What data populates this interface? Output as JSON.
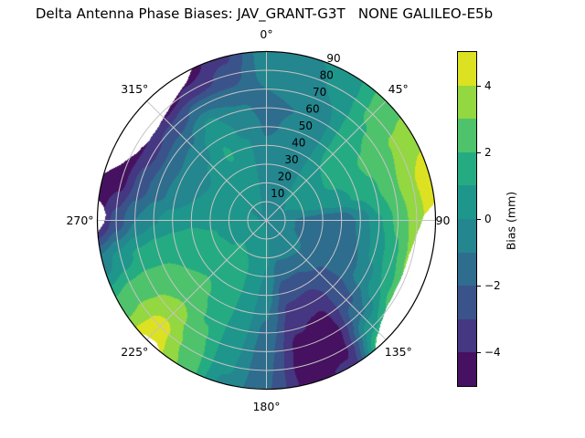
{
  "title": "Delta Antenna Phase Biases: JAV_GRANT-G3T   NONE GALILEO-E5b",
  "chart_data": {
    "type": "heatmap",
    "projection": "polar",
    "title": "Delta Antenna Phase Biases: JAV_GRANT-G3T   NONE GALILEO-E5b",
    "azimuth_tick_labels": [
      {
        "angle": 0,
        "label": "0°"
      },
      {
        "angle": 45,
        "label": "45°"
      },
      {
        "angle": 90,
        "label": "90"
      },
      {
        "angle": 135,
        "label": "135°"
      },
      {
        "angle": 180,
        "label": "180°"
      },
      {
        "angle": 225,
        "label": "225°"
      },
      {
        "angle": 270,
        "label": "270°"
      },
      {
        "angle": 315,
        "label": "315°"
      }
    ],
    "radial_tick_labels": [
      "10",
      "20",
      "30",
      "40",
      "50",
      "60",
      "70",
      "80",
      "90"
    ],
    "radial_ticks_zenith_deg": [
      10,
      20,
      30,
      40,
      50,
      60,
      70,
      80,
      90
    ],
    "radial_label_azimuth_deg": 22.5,
    "grid_color": "#c4c4c4",
    "outline_color": "#000000",
    "grid": {
      "azimuth_deg": [
        0,
        15,
        30,
        45,
        60,
        75,
        90,
        105,
        120,
        135,
        150,
        165,
        180,
        195,
        210,
        225,
        240,
        255,
        270,
        285,
        300,
        315,
        330,
        345
      ],
      "zenith_deg": [
        0,
        10,
        20,
        30,
        40,
        50,
        60,
        70,
        80,
        90
      ],
      "bias_mm": [
        [
          -0.1,
          -0.4,
          -0.6,
          -0.7,
          -0.9,
          -1.1,
          -1.2,
          -1.0,
          -0.6,
          -0.4
        ],
        [
          -0.1,
          -0.4,
          -0.5,
          -0.6,
          -0.7,
          -0.9,
          -1.0,
          -0.8,
          -0.5,
          -0.2
        ],
        [
          -0.1,
          -0.3,
          -0.3,
          -0.2,
          -0.2,
          -0.3,
          -0.2,
          0.0,
          0.3,
          0.5
        ],
        [
          -0.1,
          -0.1,
          0.2,
          0.6,
          1.0,
          1.4,
          1.7,
          1.9,
          2.2,
          2.4
        ],
        [
          -0.1,
          0.0,
          0.3,
          0.7,
          1.2,
          1.7,
          2.1,
          2.6,
          3.2,
          3.6
        ],
        [
          -0.1,
          -0.2,
          0.0,
          0.2,
          0.6,
          1.2,
          1.9,
          2.8,
          3.9,
          4.7
        ],
        [
          -0.1,
          -0.6,
          -1.3,
          -1.7,
          -1.9,
          -0.8,
          0.9,
          2.2,
          3.6,
          4.7
        ],
        [
          -0.1,
          -0.6,
          -1.3,
          -1.7,
          -1.8,
          -1.0,
          0.3,
          1.8,
          3.4,
          4.6
        ],
        [
          -0.1,
          -0.5,
          -1.0,
          -1.4,
          -1.6,
          -1.3,
          -0.4,
          1.0,
          2.8,
          4.3
        ],
        [
          -0.1,
          -0.4,
          -0.8,
          -1.4,
          -2.2,
          -2.6,
          -2.3,
          -1.2,
          0.8,
          3.5
        ],
        [
          -0.1,
          -0.3,
          -0.8,
          -1.9,
          -2.8,
          -3.6,
          -4.2,
          -4.6,
          -4.3,
          -3.8
        ],
        [
          -0.1,
          -0.3,
          -0.9,
          -1.8,
          -2.6,
          -3.3,
          -3.9,
          -4.4,
          -4.6,
          -4.4
        ],
        [
          -0.1,
          0.2,
          0.2,
          -0.1,
          -0.5,
          -0.9,
          -1.3,
          -1.6,
          -1.8,
          -1.9
        ],
        [
          -0.1,
          0.4,
          0.8,
          0.9,
          0.9,
          0.8,
          0.6,
          0.4,
          0.2,
          -0.2
        ],
        [
          -0.1,
          0.5,
          1.0,
          1.3,
          1.5,
          1.7,
          1.9,
          2.2,
          2.6,
          2.9
        ],
        [
          -0.1,
          0.5,
          1.1,
          1.5,
          1.9,
          2.3,
          2.9,
          3.6,
          4.4,
          4.8
        ],
        [
          -0.1,
          0.4,
          0.9,
          1.3,
          1.7,
          2.0,
          2.4,
          2.8,
          2.8,
          2.3
        ],
        [
          -0.1,
          0.3,
          0.7,
          1.1,
          1.4,
          1.5,
          1.5,
          1.2,
          0.5,
          -0.5
        ],
        [
          -0.1,
          0.2,
          0.5,
          0.7,
          0.8,
          0.5,
          -0.1,
          -1.0,
          -2.6,
          -4.4
        ],
        [
          -0.1,
          0.1,
          0.3,
          0.3,
          0.0,
          -0.6,
          -1.4,
          -2.6,
          -4.3,
          -4.8
        ],
        [
          -0.1,
          0.0,
          0.2,
          0.2,
          -0.2,
          -0.8,
          -1.8,
          -3.2,
          -4.7,
          -4.9
        ],
        [
          -0.1,
          0.0,
          0.2,
          0.3,
          0.1,
          -0.4,
          -1.3,
          -2.8,
          -4.5,
          -4.9
        ],
        [
          -0.1,
          0.1,
          0.4,
          0.8,
          1.1,
          0.9,
          0.2,
          -1.5,
          -3.8,
          -4.7
        ],
        [
          -0.1,
          0.0,
          0.1,
          0.2,
          0.2,
          -0.2,
          -0.8,
          -1.8,
          -2.6,
          -3.2
        ]
      ]
    },
    "nodata_regions": [
      {
        "name": "east-edge-gap",
        "profile": [
          [
            84,
            90
          ],
          [
            88,
            84
          ],
          [
            96,
            80
          ],
          [
            104,
            78
          ],
          [
            118,
            78
          ],
          [
            126,
            79
          ],
          [
            132,
            82
          ],
          [
            137,
            86
          ],
          [
            140,
            90
          ]
        ]
      },
      {
        "name": "northwest-edge-gap",
        "profile": [
          [
            286,
            90
          ],
          [
            291,
            83
          ],
          [
            297,
            78
          ],
          [
            304,
            75.5
          ],
          [
            311,
            76
          ],
          [
            318,
            78.5
          ],
          [
            325,
            82
          ],
          [
            330,
            85
          ],
          [
            334,
            90
          ]
        ]
      },
      {
        "name": "southwest-edge-spot",
        "profile": [
          [
            219,
            90
          ],
          [
            222,
            87.5
          ],
          [
            226,
            88.5
          ],
          [
            228,
            90
          ]
        ]
      },
      {
        "name": "west-edge-sliver",
        "profile": [
          [
            266,
            90
          ],
          [
            269,
            86.5
          ],
          [
            272,
            85.5
          ],
          [
            275,
            87
          ],
          [
            277,
            90
          ]
        ]
      }
    ],
    "colorbar": {
      "label": "Bias (mm)",
      "tick_values": [
        4,
        2,
        0,
        -2,
        -4
      ],
      "tick_labels": [
        "4",
        "2",
        "0",
        "−2",
        "−4"
      ],
      "range": [
        -5,
        5
      ],
      "level_step": 1,
      "band_colors": [
        "#461160",
        "#453781",
        "#3b538b",
        "#2e6d8e",
        "#24868e",
        "#1f968b",
        "#25ab82",
        "#4ec36b",
        "#93d741",
        "#dce122"
      ]
    }
  }
}
